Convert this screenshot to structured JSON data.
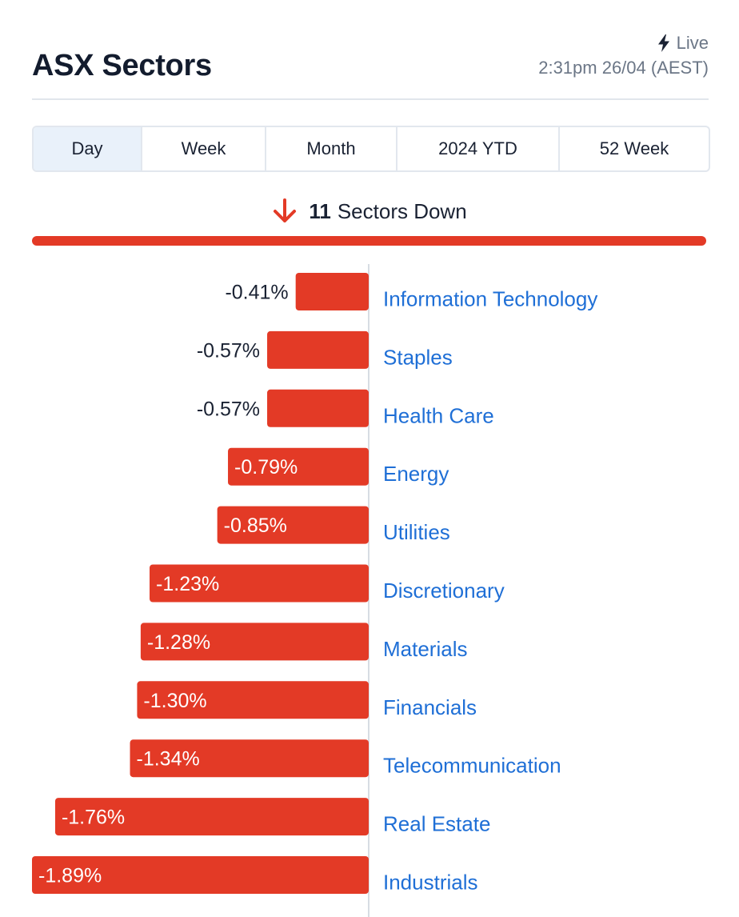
{
  "header": {
    "title": "ASX Sectors",
    "live_label": "Live",
    "live_icon": "lightning-icon",
    "timestamp": "2:31pm 26/04 (AEST)"
  },
  "tabs": [
    {
      "label": "Day",
      "active": true
    },
    {
      "label": "Week",
      "active": false
    },
    {
      "label": "Month",
      "active": false
    },
    {
      "label": "2024 YTD",
      "active": false
    },
    {
      "label": "52 Week",
      "active": false
    }
  ],
  "summary": {
    "count": "11",
    "text": "Sectors Down",
    "icon": "arrow-down-icon",
    "down_fraction": 1.0
  },
  "colors": {
    "down": "#e33a26",
    "sector_label": "#1f6fd6",
    "text": "#1a2233",
    "muted": "#6b7686"
  },
  "chart_data": {
    "type": "bar",
    "orientation": "horizontal",
    "categories": [
      "Information Technology",
      "Staples",
      "Health Care",
      "Energy",
      "Utilities",
      "Discretionary",
      "Materials",
      "Financials",
      "Telecommunication",
      "Real Estate",
      "Industrials"
    ],
    "values": [
      -0.41,
      -0.57,
      -0.57,
      -0.79,
      -0.85,
      -1.23,
      -1.28,
      -1.3,
      -1.34,
      -1.76,
      -1.89
    ],
    "value_labels": [
      "-0.41%",
      "-0.57%",
      "-0.57%",
      "-0.79%",
      "-0.85%",
      "-1.23%",
      "-1.28%",
      "-1.30%",
      "-1.34%",
      "-1.76%",
      "-1.89%"
    ],
    "xlim": [
      -1.89,
      0
    ],
    "grid": false,
    "legend": "none"
  }
}
